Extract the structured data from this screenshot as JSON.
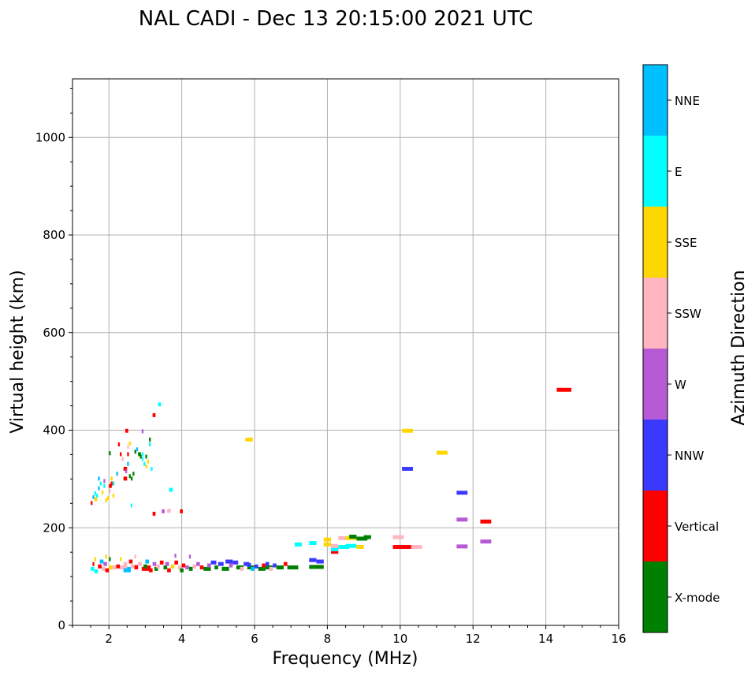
{
  "chart_data": {
    "type": "scatter",
    "title": "NAL CADI - Dec 13 20:15:00 2021 UTC",
    "xlabel": "Frequency (MHz)",
    "ylabel": "Virtual height (km)",
    "xlim": [
      1,
      16
    ],
    "ylim": [
      0,
      1120
    ],
    "xticks": [
      "2",
      "4",
      "6",
      "8",
      "10",
      "12",
      "14",
      "16"
    ],
    "yticks": [
      "0",
      "200",
      "400",
      "600",
      "800",
      "1000"
    ],
    "grid": true,
    "colorbar": {
      "label": "Azimuth Direction",
      "categories": [
        "X-mode",
        "Vertical",
        "NNW",
        "W",
        "SSW",
        "SSE",
        "E",
        "NNE"
      ],
      "colors": [
        "#008000",
        "#ff0000",
        "#3a3aff",
        "#b65ad6",
        "#ffb6c1",
        "#ffd700",
        "#00ffff",
        "#00bfff"
      ]
    },
    "points_note": "each point: [frequency MHz, virtual height km, category index, frequency span MHz]",
    "points": [
      [
        14.3,
        482,
        1,
        0.4
      ],
      [
        10.05,
        398,
        5,
        0.3
      ],
      [
        11.0,
        353,
        5,
        0.3
      ],
      [
        10.05,
        320,
        2,
        0.3
      ],
      [
        11.55,
        271,
        2,
        0.3
      ],
      [
        11.55,
        216,
        3,
        0.3
      ],
      [
        12.2,
        212,
        1,
        0.3
      ],
      [
        12.2,
        171,
        3,
        0.3
      ],
      [
        11.55,
        161,
        3,
        0.3
      ],
      [
        9.8,
        180,
        4,
        0.3
      ],
      [
        9.8,
        160,
        1,
        0.55
      ],
      [
        10.3,
        160,
        4,
        0.3
      ],
      [
        5.75,
        380,
        5,
        0.2
      ],
      [
        7.1,
        165,
        6,
        0.2
      ],
      [
        7.5,
        168,
        6,
        0.2
      ],
      [
        7.5,
        133,
        2,
        0.2
      ],
      [
        7.7,
        130,
        2,
        0.2
      ],
      [
        7.5,
        119,
        0,
        0.4
      ],
      [
        7.9,
        175,
        5,
        0.2
      ],
      [
        7.9,
        165,
        5,
        0.2
      ],
      [
        8.1,
        150,
        1,
        0.2
      ],
      [
        8.1,
        155,
        6,
        0.2
      ],
      [
        8.3,
        160,
        6,
        0.3
      ],
      [
        8.3,
        178,
        4,
        0.2
      ],
      [
        8.5,
        178,
        5,
        0.3
      ],
      [
        8.5,
        162,
        6,
        0.3
      ],
      [
        8.6,
        181,
        0,
        0.2
      ],
      [
        8.8,
        177,
        0,
        0.3
      ],
      [
        8.8,
        160,
        5,
        0.2
      ],
      [
        9.0,
        180,
        0,
        0.2
      ],
      [
        8.1,
        162,
        4,
        0.2
      ],
      [
        1.5,
        250,
        1,
        0.05
      ],
      [
        1.55,
        262,
        7,
        0.05
      ],
      [
        1.6,
        258,
        5,
        0.08
      ],
      [
        1.6,
        270,
        6,
        0.05
      ],
      [
        1.65,
        265,
        6,
        0.05
      ],
      [
        1.7,
        280,
        7,
        0.05
      ],
      [
        1.7,
        300,
        7,
        0.05
      ],
      [
        1.75,
        290,
        6,
        0.05
      ],
      [
        1.8,
        272,
        5,
        0.05
      ],
      [
        1.85,
        285,
        6,
        0.05
      ],
      [
        1.85,
        295,
        3,
        0.05
      ],
      [
        1.9,
        255,
        5,
        0.05
      ],
      [
        1.95,
        260,
        5,
        0.05
      ],
      [
        2.0,
        285,
        1,
        0.08
      ],
      [
        2.0,
        275,
        4,
        0.05
      ],
      [
        2.05,
        290,
        1,
        0.1
      ],
      [
        2.05,
        300,
        5,
        0.05
      ],
      [
        2.1,
        290,
        6,
        0.05
      ],
      [
        2.1,
        265,
        5,
        0.05
      ],
      [
        2.2,
        310,
        7,
        0.05
      ],
      [
        2.35,
        340,
        4,
        0.05
      ],
      [
        2.4,
        300,
        1,
        0.1
      ],
      [
        2.4,
        320,
        1,
        0.1
      ],
      [
        2.45,
        315,
        3,
        0.05
      ],
      [
        2.5,
        330,
        7,
        0.05
      ],
      [
        2.5,
        350,
        1,
        0.05
      ],
      [
        2.5,
        365,
        4,
        0.05
      ],
      [
        2.55,
        372,
        5,
        0.05
      ],
      [
        2.55,
        305,
        0,
        0.05
      ],
      [
        2.6,
        300,
        0,
        0.05
      ],
      [
        2.65,
        310,
        0,
        0.05
      ],
      [
        2.7,
        355,
        0,
        0.05
      ],
      [
        2.75,
        360,
        7,
        0.05
      ],
      [
        2.8,
        350,
        0,
        0.08
      ],
      [
        2.85,
        345,
        0,
        0.05
      ],
      [
        2.9,
        350,
        6,
        0.05
      ],
      [
        2.9,
        340,
        6,
        0.05
      ],
      [
        2.95,
        330,
        6,
        0.05
      ],
      [
        3.0,
        345,
        0,
        0.05
      ],
      [
        3.0,
        325,
        5,
        0.05
      ],
      [
        3.05,
        335,
        5,
        0.05
      ],
      [
        3.1,
        380,
        0,
        0.05
      ],
      [
        3.1,
        370,
        6,
        0.05
      ],
      [
        3.15,
        320,
        6,
        0.05
      ],
      [
        3.2,
        430,
        1,
        0.08
      ],
      [
        3.35,
        452,
        6,
        0.08
      ],
      [
        2.45,
        398,
        1,
        0.08
      ],
      [
        2.9,
        397,
        3,
        0.05
      ],
      [
        2.6,
        245,
        6,
        0.03
      ],
      [
        3.65,
        277,
        6,
        0.1
      ],
      [
        3.2,
        228,
        1,
        0.08
      ],
      [
        3.45,
        233,
        3,
        0.08
      ],
      [
        3.6,
        234,
        4,
        0.1
      ],
      [
        3.95,
        233,
        1,
        0.08
      ],
      [
        2.3,
        350,
        1,
        0.05
      ],
      [
        2.25,
        370,
        1,
        0.05
      ],
      [
        2.0,
        352,
        0,
        0.05
      ],
      [
        1.5,
        115,
        6,
        0.1
      ],
      [
        1.55,
        125,
        1,
        0.05
      ],
      [
        1.6,
        135,
        5,
        0.05
      ],
      [
        1.6,
        110,
        6,
        0.1
      ],
      [
        1.7,
        120,
        1,
        0.1
      ],
      [
        1.75,
        130,
        7,
        0.1
      ],
      [
        1.8,
        115,
        4,
        0.1
      ],
      [
        1.85,
        125,
        3,
        0.1
      ],
      [
        1.9,
        112,
        1,
        0.1
      ],
      [
        2.0,
        118,
        5,
        0.1
      ],
      [
        2.0,
        135,
        0,
        0.05
      ],
      [
        2.1,
        118,
        4,
        0.1
      ],
      [
        2.2,
        120,
        1,
        0.1
      ],
      [
        2.3,
        118,
        4,
        0.2
      ],
      [
        2.4,
        112,
        7,
        0.2
      ],
      [
        2.4,
        125,
        4,
        0.1
      ],
      [
        2.5,
        115,
        7,
        0.1
      ],
      [
        2.55,
        130,
        1,
        0.1
      ],
      [
        2.6,
        120,
        4,
        0.2
      ],
      [
        2.7,
        118,
        1,
        0.1
      ],
      [
        2.8,
        125,
        4,
        0.1
      ],
      [
        2.9,
        115,
        1,
        0.2
      ],
      [
        2.95,
        120,
        0,
        0.1
      ],
      [
        3.0,
        130,
        7,
        0.1
      ],
      [
        3.05,
        118,
        1,
        0.1
      ],
      [
        3.1,
        112,
        1,
        0.1
      ],
      [
        3.2,
        125,
        3,
        0.1
      ],
      [
        3.25,
        115,
        0,
        0.1
      ],
      [
        3.3,
        120,
        4,
        0.1
      ],
      [
        3.4,
        128,
        1,
        0.1
      ],
      [
        3.5,
        118,
        0,
        0.1
      ],
      [
        3.55,
        125,
        3,
        0.1
      ],
      [
        3.6,
        112,
        1,
        0.1
      ],
      [
        3.7,
        120,
        5,
        0.1
      ],
      [
        3.8,
        128,
        1,
        0.1
      ],
      [
        3.9,
        118,
        4,
        0.1
      ],
      [
        3.95,
        112,
        0,
        0.1
      ],
      [
        4.0,
        122,
        1,
        0.1
      ],
      [
        4.1,
        118,
        3,
        0.1
      ],
      [
        4.2,
        115,
        0,
        0.1
      ],
      [
        4.3,
        120,
        4,
        0.1
      ],
      [
        4.4,
        125,
        3,
        0.1
      ],
      [
        4.5,
        118,
        1,
        0.1
      ],
      [
        4.6,
        115,
        0,
        0.2
      ],
      [
        4.7,
        122,
        3,
        0.1
      ],
      [
        4.8,
        128,
        2,
        0.15
      ],
      [
        4.9,
        118,
        0,
        0.1
      ],
      [
        5.0,
        125,
        2,
        0.15
      ],
      [
        5.1,
        115,
        0,
        0.2
      ],
      [
        5.2,
        130,
        2,
        0.2
      ],
      [
        5.3,
        122,
        3,
        0.1
      ],
      [
        5.4,
        128,
        2,
        0.15
      ],
      [
        5.5,
        118,
        0,
        0.2
      ],
      [
        5.6,
        115,
        4,
        0.1
      ],
      [
        5.7,
        125,
        2,
        0.15
      ],
      [
        5.8,
        118,
        0,
        0.2
      ],
      [
        5.9,
        115,
        7,
        0.1
      ],
      [
        6.0,
        120,
        2,
        0.1
      ],
      [
        6.1,
        115,
        0,
        0.2
      ],
      [
        6.2,
        122,
        1,
        0.1
      ],
      [
        6.3,
        118,
        0,
        0.2
      ],
      [
        6.4,
        115,
        4,
        0.1
      ],
      [
        6.5,
        122,
        2,
        0.1
      ],
      [
        6.6,
        118,
        0,
        0.2
      ],
      [
        6.8,
        125,
        1,
        0.1
      ],
      [
        6.9,
        118,
        0,
        0.2
      ],
      [
        7.0,
        118,
        0,
        0.2
      ],
      [
        4.2,
        140,
        3,
        0.05
      ],
      [
        3.8,
        142,
        3,
        0.05
      ],
      [
        2.7,
        140,
        4,
        0.05
      ],
      [
        2.3,
        135,
        5,
        0.05
      ],
      [
        1.9,
        140,
        5,
        0.05
      ],
      [
        5.8,
        123,
        2,
        0.1
      ],
      [
        6.3,
        125,
        2,
        0.1
      ]
    ]
  }
}
